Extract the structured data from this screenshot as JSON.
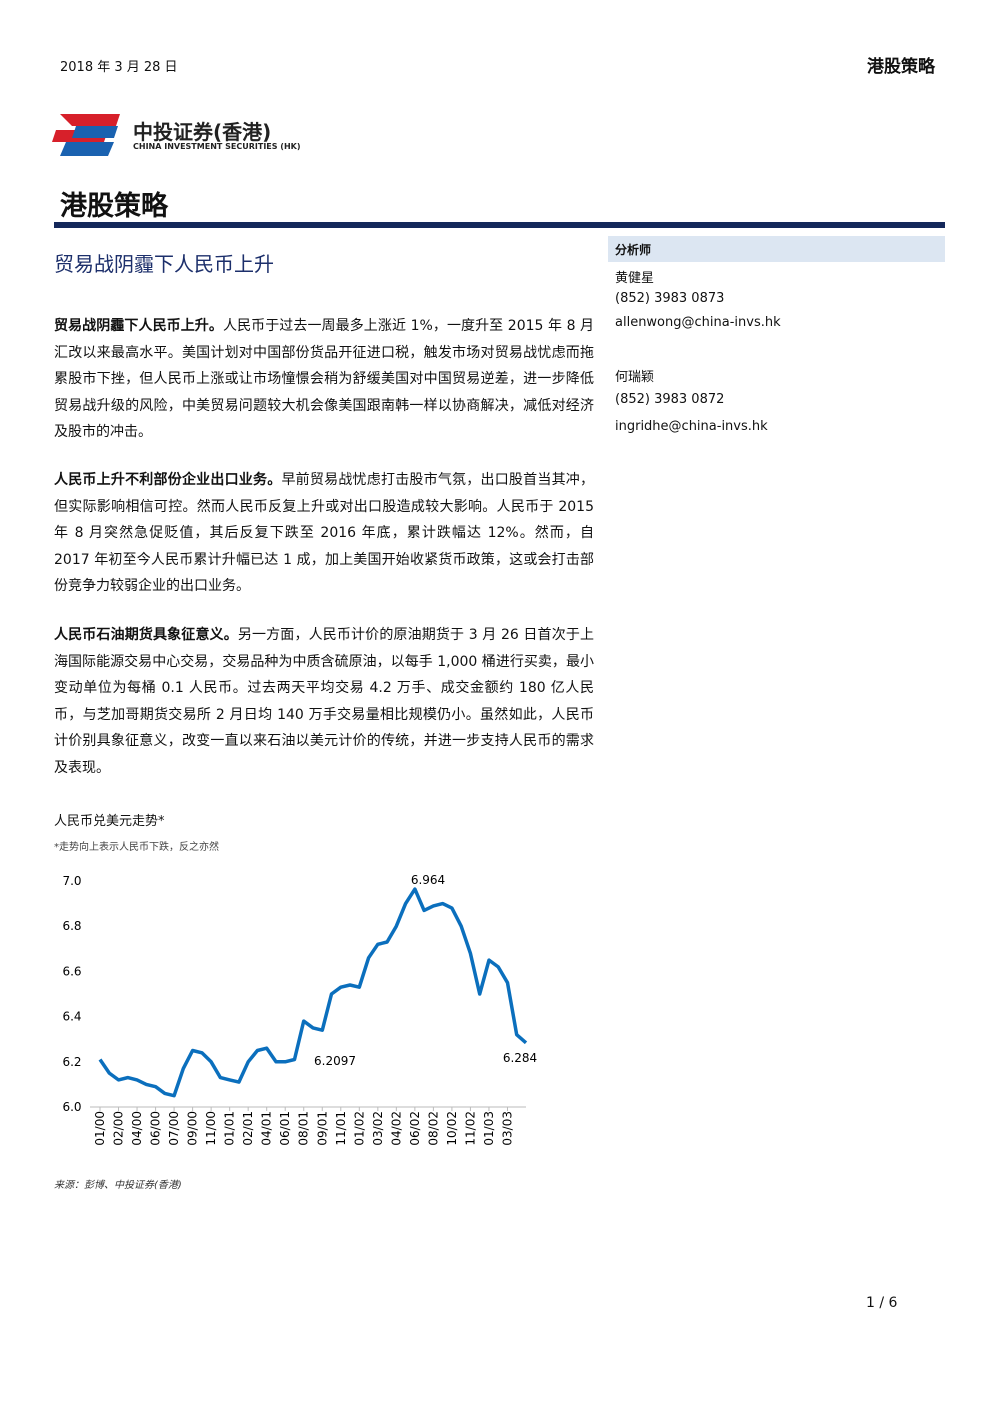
{
  "header": {
    "date": "2018 年 3 月 28 日",
    "section": "港股策略"
  },
  "logo": {
    "name": "中投证券(香港)",
    "english": "CHINA INVESTMENT SECURITIES (HK)"
  },
  "page_title": "港股策略",
  "article_title": "贸易战阴霾下人民币上升",
  "paragraphs": [
    {
      "lead": "贸易战阴霾下人民币上升。",
      "body": "人民币于过去一周最多上涨近 1%，一度升至 2015 年 8 月汇改以来最高水平。美国计划对中国部份货品开征进口税，触发市场对贸易战忧虑而拖累股市下挫，但人民币上涨或让市场憧憬会稍为舒缓美国对中国贸易逆差，进一步降低贸易战升级的风险，中美贸易问题较大机会像美国跟南韩一样以协商解决，减低对经济及股市的冲击。"
    },
    {
      "lead": "人民币上升不利部份企业出口业务。",
      "body": "早前贸易战忧虑打击股市气氛，出口股首当其冲，但实际影响相信可控。然而人民币反复上升或对出口股造成较大影响。人民币于 2015 年 8 月突然急促贬值，其后反复下跌至 2016 年底，累计跌幅达 12%。然而，自 2017 年初至今人民币累计升幅已达 1 成，加上美国开始收紧货币政策，这或会打击部份竞争力较弱企业的出口业务。"
    },
    {
      "lead": "人民币石油期货具象征意义。",
      "body": "另一方面，人民币计价的原油期货于 3 月 26 日首次于上海国际能源交易中心交易，交易品种为中质含硫原油，以每手 1,000 桶进行买卖，最小变动单位为每桶 0.1 人民币。过去两天平均交易 4.2 万手、成交金额约 180 亿人民币，与芝加哥期货交易所 2 月日均 140 万手交易量相比规模仍小。虽然如此，人民币计价别具象征意义，改变一直以来石油以美元计价的传统，并进一步支持人民币的需求及表现。"
    }
  ],
  "sidebar": {
    "heading": "分析师",
    "analysts": [
      {
        "name": "黄健星",
        "phone": "(852) 3983 0873",
        "email": "allenwong@china-invs.hk"
      },
      {
        "name": "何瑞颖",
        "phone": "(852) 3983 0872",
        "email": "ingridhe@china-invs.hk"
      }
    ]
  },
  "chart_data": {
    "type": "line",
    "title": "人民币兑美元走势*",
    "subtitle": "*走势向上表示人民币下跌，反之亦然",
    "source": "来源：彭博、中投证券(香港)",
    "categories": [
      "01/00",
      null,
      "02/00",
      null,
      "04/00",
      null,
      "06/00",
      null,
      "07/00",
      null,
      "09/00",
      null,
      "11/00",
      null,
      "01/01",
      null,
      "02/01",
      null,
      "04/01",
      null,
      "06/01",
      null,
      "08/01",
      null,
      "09/01",
      null,
      "11/01",
      null,
      "01/02",
      null,
      "03/02",
      null,
      "04/02",
      null,
      "06/02",
      null,
      "08/02",
      null,
      "10/02",
      null,
      "11/02",
      null,
      "01/03",
      null,
      "03/03",
      null,
      null
    ],
    "values": [
      6.21,
      6.15,
      6.12,
      6.13,
      6.12,
      6.1,
      6.09,
      6.06,
      6.05,
      6.17,
      6.25,
      6.24,
      6.2,
      6.13,
      6.12,
      6.11,
      6.2,
      6.25,
      6.26,
      6.2,
      6.2,
      6.21,
      6.38,
      6.35,
      6.34,
      6.5,
      6.53,
      6.54,
      6.53,
      6.66,
      6.72,
      6.73,
      6.8,
      6.9,
      6.964,
      6.87,
      6.89,
      6.9,
      6.88,
      6.8,
      6.68,
      6.5,
      6.65,
      6.62,
      6.55,
      6.32,
      6.284
    ],
    "color": "#0b6fbd",
    "ylim": [
      6.0,
      7.0
    ],
    "yticks": [
      {
        "value": 6,
        "label": "6.0"
      },
      6.2,
      6.4,
      6.6,
      6.8,
      {
        "value": 7,
        "label": "7.0"
      }
    ],
    "annotations": [
      "6.964",
      "6.2097",
      "6.284"
    ]
  },
  "footer": {
    "page": "1 / 6"
  }
}
